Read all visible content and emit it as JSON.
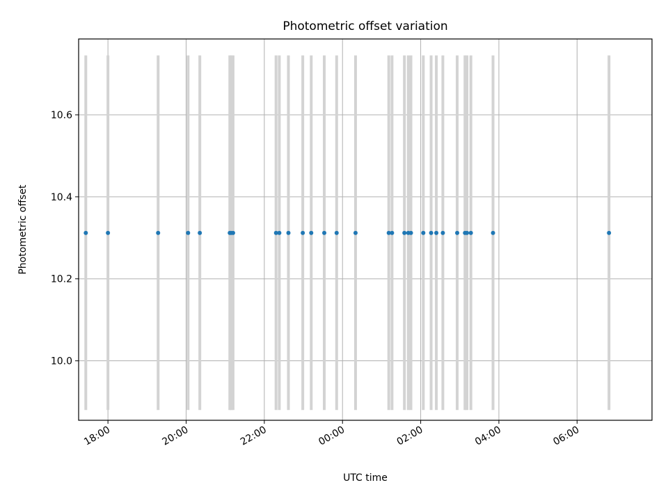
{
  "chart_data": {
    "type": "scatter",
    "title": "Photometric offset variation",
    "xlabel": "UTC time",
    "ylabel": "Photometric offset",
    "x_ticks": [
      "18:00",
      "20:00",
      "22:00",
      "00:00",
      "02:00",
      "04:00",
      "06:00"
    ],
    "y_ticks": [
      "10.0",
      "10.2",
      "10.4",
      "10.6"
    ],
    "grid": true,
    "x_unit": "UTC time (hh:mm)",
    "xlim": [
      "17:15",
      "07:55"
    ],
    "ylim": [
      9.855,
      10.785
    ],
    "errorbar_range": [
      9.88,
      10.745
    ],
    "series": [
      {
        "x": [
          "17:26",
          "18:00",
          "19:17",
          "20:03",
          "20:21",
          "21:07",
          "21:09",
          "21:12",
          "22:18",
          "22:23",
          "22:37",
          "22:59",
          "23:12",
          "23:32",
          "23:51",
          "00:20",
          "01:11",
          "01:16",
          "01:35",
          "01:41",
          "01:45",
          "02:04",
          "02:16",
          "02:24",
          "02:34",
          "02:56",
          "03:08",
          "03:11",
          "03:17",
          "03:51",
          "06:49"
        ],
        "y": [
          10.312,
          10.312,
          10.312,
          10.312,
          10.312,
          10.312,
          10.312,
          10.312,
          10.312,
          10.312,
          10.312,
          10.312,
          10.312,
          10.312,
          10.312,
          10.312,
          10.312,
          10.312,
          10.312,
          10.312,
          10.312,
          10.312,
          10.312,
          10.312,
          10.312,
          10.312,
          10.312,
          10.312,
          10.312,
          10.312,
          10.312
        ]
      }
    ],
    "colors": {
      "points": "#1f77b4",
      "errorbars": "#d3d3d3",
      "grid": "#b0b0b0",
      "axes": "#000000"
    }
  }
}
